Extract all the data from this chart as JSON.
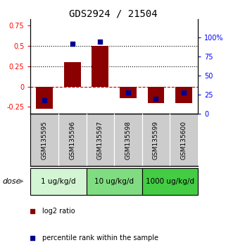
{
  "title": "GDS2924 / 21504",
  "samples": [
    "GSM135595",
    "GSM135596",
    "GSM135597",
    "GSM135598",
    "GSM135599",
    "GSM135600"
  ],
  "log2_ratio": [
    -0.27,
    0.3,
    0.5,
    -0.14,
    -0.2,
    -0.2
  ],
  "percentile_rank": [
    18,
    92,
    95,
    28,
    20,
    28
  ],
  "ylim_left": [
    -0.3333,
    0.8333
  ],
  "ylim_right": [
    0,
    125
  ],
  "yticks_left": [
    -0.25,
    0.0,
    0.25,
    0.5,
    0.75
  ],
  "yticks_right": [
    0,
    25,
    50,
    75,
    100
  ],
  "ytick_labels_left": [
    "-0.25",
    "0",
    "0.25",
    "0.5",
    "0.75"
  ],
  "ytick_labels_right": [
    "0",
    "25",
    "50",
    "75",
    "100%"
  ],
  "hlines_dotted": [
    0.25,
    0.5
  ],
  "hline_dashed": 0.0,
  "bar_color": "#8B0000",
  "bar_width": 0.6,
  "square_color": "#00008B",
  "square_size": 18,
  "dose_groups": [
    {
      "label": "1 ug/kg/d",
      "samples": [
        0,
        1
      ],
      "color": "#d4f5d4"
    },
    {
      "label": "10 ug/kg/d",
      "samples": [
        2,
        3
      ],
      "color": "#80dc80"
    },
    {
      "label": "1000 ug/kg/d",
      "samples": [
        4,
        5
      ],
      "color": "#44cc44"
    }
  ],
  "legend_items": [
    {
      "label": "log2 ratio",
      "color": "#8B0000"
    },
    {
      "label": "percentile rank within the sample",
      "color": "#00008B"
    }
  ],
  "dose_label": "dose",
  "title_fontsize": 10,
  "tick_fontsize": 7,
  "label_fontsize": 8,
  "gray_color": "#cccccc",
  "sample_fontsize": 6.5,
  "dose_fontsize": 7.5,
  "legend_fontsize": 7
}
